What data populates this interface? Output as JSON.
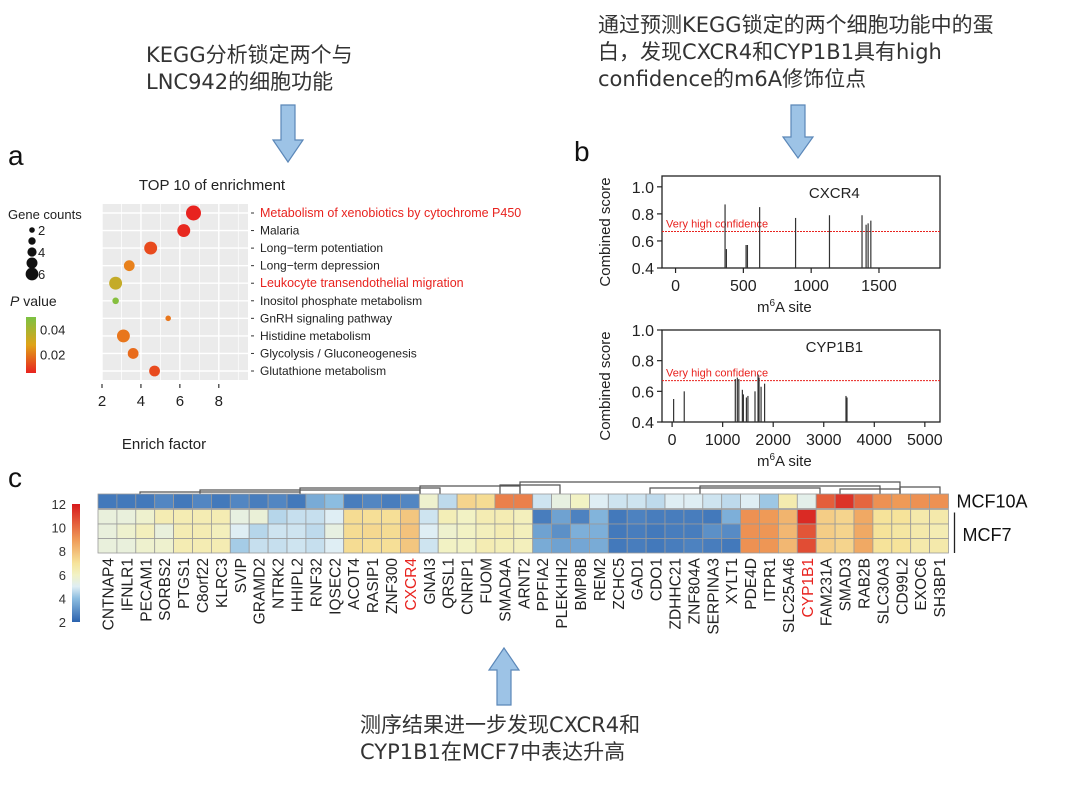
{
  "annotations": {
    "top_left": "KEGG分析锁定两个与\nLNC942的细胞功能",
    "top_right": "通过预测KEGG锁定的两个细胞功能中的蛋\n白，发现CXCR4和CYP1B1具有high\nconfidence的m6A修饰位点",
    "bottom": "测序结果进一步发现CXCR4和\nCYP1B1在MCF7中表达升高",
    "arrow_color": "#9dc3e6",
    "arrow_stroke": "#5b87b8"
  },
  "panels": {
    "a": "a",
    "b": "b",
    "c": "c"
  },
  "chart_data": [
    {
      "id": "a",
      "type": "scatter",
      "title": "TOP 10 of enrichment",
      "xlabel": "Enrich factor",
      "ylabel": "",
      "xlim": [
        2,
        9.5
      ],
      "xticks": [
        "2",
        "4",
        "6",
        "8"
      ],
      "xtick_values": [
        2,
        4,
        6,
        8
      ],
      "grid": true,
      "legend_size_title": "Gene counts",
      "legend_size_items": [
        {
          "label": "2",
          "value": 2
        },
        {
          "label": "",
          "value": 3
        },
        {
          "label": "4",
          "value": 4
        },
        {
          "label": "",
          "value": 5
        },
        {
          "label": "6",
          "value": 6
        }
      ],
      "legend_color_title_italic": "P",
      "legend_color_title": " value",
      "legend_color_ticks": [
        "0.04",
        "0.02"
      ],
      "legend_color_tick_values": [
        0.04,
        0.02
      ],
      "color_range": [
        0.005,
        0.05
      ],
      "colors": {
        "low": "#e8231f",
        "mid": "#e8a01a",
        "high": "#7cc243"
      },
      "terms": [
        {
          "label": "Metabolism of xenobiotics by cytochrome P450",
          "enrich": 6.7,
          "count": 6,
          "p": 0.005,
          "highlight": true
        },
        {
          "label": "Malaria",
          "enrich": 6.2,
          "count": 5,
          "p": 0.006,
          "highlight": false
        },
        {
          "label": "Long−term potentiation",
          "enrich": 4.5,
          "count": 5,
          "p": 0.012,
          "highlight": false
        },
        {
          "label": "Long−term depression",
          "enrich": 3.4,
          "count": 4,
          "p": 0.022,
          "highlight": false
        },
        {
          "label": "Leukocyte transendothelial migration",
          "enrich": 2.7,
          "count": 5,
          "p": 0.035,
          "highlight": true
        },
        {
          "label": "Inositol phosphate metabolism",
          "enrich": 2.7,
          "count": 2,
          "p": 0.048,
          "highlight": false
        },
        {
          "label": "GnRH signaling pathway",
          "enrich": 5.4,
          "count": 1.5,
          "p": 0.02,
          "highlight": false
        },
        {
          "label": "Histidine metabolism",
          "enrich": 3.1,
          "count": 5,
          "p": 0.02,
          "highlight": false
        },
        {
          "label": "Glycolysis / Gluconeogenesis",
          "enrich": 3.6,
          "count": 4,
          "p": 0.018,
          "highlight": false
        },
        {
          "label": "Glutathione metabolism",
          "enrich": 4.7,
          "count": 4,
          "p": 0.012,
          "highlight": false
        }
      ],
      "highlight_color": "#e8231f"
    },
    {
      "id": "b1",
      "type": "bar",
      "title": "CXCR4",
      "xlabel_main": "m",
      "xlabel_sup": "6",
      "xlabel_rest": "A site",
      "ylabel": "Combined score",
      "xlim": [
        -100,
        1950
      ],
      "ylim": [
        0.4,
        1.08
      ],
      "xticks": [
        0,
        500,
        1000,
        1500
      ],
      "yticks": [
        0.4,
        0.6,
        0.8,
        1.0
      ],
      "ytick_labels": [
        "0.4",
        "0.6",
        "0.8",
        "1.0"
      ],
      "threshold": 0.67,
      "threshold_label": "Very high confidence",
      "threshold_color": "#e8231f",
      "sites": [
        {
          "x": 365,
          "y": 0.87
        },
        {
          "x": 375,
          "y": 0.54
        },
        {
          "x": 520,
          "y": 0.57
        },
        {
          "x": 530,
          "y": 0.57
        },
        {
          "x": 620,
          "y": 0.85
        },
        {
          "x": 885,
          "y": 0.77
        },
        {
          "x": 1135,
          "y": 0.79
        },
        {
          "x": 1375,
          "y": 0.79
        },
        {
          "x": 1405,
          "y": 0.72
        },
        {
          "x": 1420,
          "y": 0.73
        },
        {
          "x": 1440,
          "y": 0.75
        }
      ]
    },
    {
      "id": "b2",
      "type": "bar",
      "title": "CYP1B1",
      "xlabel_main": "m",
      "xlabel_sup": "6",
      "xlabel_rest": "A site",
      "ylabel": "Combined score",
      "xlim": [
        -200,
        5300
      ],
      "ylim": [
        0.4,
        1.0
      ],
      "xticks": [
        0,
        1000,
        2000,
        3000,
        4000,
        5000
      ],
      "yticks": [
        0.4,
        0.6,
        0.8,
        1.0
      ],
      "ytick_labels": [
        "0.4",
        "0.6",
        "0.8",
        "1.0"
      ],
      "threshold": 0.67,
      "threshold_label": "Very high confidence",
      "threshold_color": "#e8231f",
      "sites": [
        {
          "x": 30,
          "y": 0.55
        },
        {
          "x": 240,
          "y": 0.6
        },
        {
          "x": 1250,
          "y": 0.68
        },
        {
          "x": 1290,
          "y": 0.69
        },
        {
          "x": 1320,
          "y": 0.68
        },
        {
          "x": 1390,
          "y": 0.61
        },
        {
          "x": 1410,
          "y": 0.58
        },
        {
          "x": 1470,
          "y": 0.56
        },
        {
          "x": 1500,
          "y": 0.57
        },
        {
          "x": 1640,
          "y": 0.6
        },
        {
          "x": 1700,
          "y": 0.71
        },
        {
          "x": 1720,
          "y": 0.69
        },
        {
          "x": 1760,
          "y": 0.63
        },
        {
          "x": 1830,
          "y": 0.65
        },
        {
          "x": 3440,
          "y": 0.57
        },
        {
          "x": 3460,
          "y": 0.56
        }
      ]
    },
    {
      "id": "c",
      "type": "heatmap",
      "title": "",
      "colorbar_ticks": [
        "12",
        "10",
        "8",
        "6",
        "4",
        "2"
      ],
      "colorbar_values": [
        12,
        10,
        8,
        6,
        4,
        2
      ],
      "value_range": [
        2,
        12
      ],
      "row_groups": [
        {
          "label": "MCF10A",
          "rows": 1
        },
        {
          "label": "MCF7",
          "rows": 3
        }
      ],
      "highlight_color": "#e8231f",
      "genes": [
        {
          "name": "CNTNAP4",
          "values": [
            2.5,
            5.5,
            5.5,
            5.5
          ]
        },
        {
          "name": "IFNLR1",
          "values": [
            2.5,
            5.5,
            5.8,
            5.5
          ]
        },
        {
          "name": "PECAM1",
          "values": [
            2.5,
            5.8,
            6.2,
            5.8
          ]
        },
        {
          "name": "SORBS2",
          "values": [
            2.8,
            6.4,
            5.5,
            5.8
          ]
        },
        {
          "name": "PTGS1",
          "values": [
            2.5,
            6.4,
            6.4,
            6.4
          ]
        },
        {
          "name": "C8orf22",
          "values": [
            2.8,
            6.4,
            6.4,
            6.4
          ]
        },
        {
          "name": "KLRC3",
          "values": [
            2.5,
            6.4,
            6.2,
            6.4
          ]
        },
        {
          "name": "SVIP",
          "values": [
            2.8,
            5.4,
            5.0,
            4.3
          ]
        },
        {
          "name": "GRAMD2",
          "values": [
            2.6,
            5.6,
            4.5,
            4.7
          ]
        },
        {
          "name": "NTRK2",
          "values": [
            2.8,
            4.5,
            4.8,
            4.7
          ]
        },
        {
          "name": "HHIPL2",
          "values": [
            2.5,
            4.7,
            4.8,
            4.8
          ]
        },
        {
          "name": "RNF32",
          "values": [
            3.6,
            4.7,
            4.6,
            4.7
          ]
        },
        {
          "name": "IQSEC2",
          "values": [
            4.0,
            5.0,
            5.4,
            5.0
          ]
        },
        {
          "name": "ACOT4",
          "values": [
            2.6,
            7.2,
            7.2,
            7.2
          ]
        },
        {
          "name": "RASIP1",
          "values": [
            2.8,
            7.1,
            7.3,
            7.1
          ]
        },
        {
          "name": "ZNF300",
          "values": [
            2.6,
            7.1,
            7.2,
            7.1
          ]
        },
        {
          "name": "CXCR4",
          "values": [
            2.8,
            7.8,
            7.9,
            7.8
          ],
          "highlight": true
        },
        {
          "name": "GNAI3",
          "values": [
            5.8,
            4.8,
            5.0,
            4.8
          ]
        },
        {
          "name": "QRSL1",
          "values": [
            4.6,
            6.3,
            5.8,
            6.0
          ]
        },
        {
          "name": "CNRIP1",
          "values": [
            7.4,
            6.0,
            6.0,
            6.0
          ]
        },
        {
          "name": "FUOM",
          "values": [
            7.2,
            6.4,
            6.2,
            6.4
          ]
        },
        {
          "name": "SMAD4A",
          "values": [
            9.6,
            6.4,
            6.4,
            6.3
          ]
        },
        {
          "name": "ARNT2",
          "values": [
            9.6,
            6.2,
            6.2,
            6.2
          ]
        },
        {
          "name": "PPFIA2",
          "values": [
            4.8,
            2.6,
            3.4,
            3.6
          ]
        },
        {
          "name": "PLEKHH2",
          "values": [
            5.4,
            3.4,
            3.0,
            3.4
          ]
        },
        {
          "name": "BMP8B",
          "values": [
            6.0,
            2.7,
            3.7,
            3.5
          ]
        },
        {
          "name": "REM2",
          "values": [
            5.0,
            3.8,
            3.7,
            3.6
          ]
        },
        {
          "name": "ZCHC5",
          "values": [
            4.8,
            2.5,
            2.5,
            2.5
          ]
        },
        {
          "name": "GAD1",
          "values": [
            4.8,
            2.7,
            2.6,
            2.6
          ]
        },
        {
          "name": "CDO1",
          "values": [
            4.6,
            2.6,
            2.5,
            2.5
          ]
        },
        {
          "name": "ZDHHC21",
          "values": [
            5.0,
            2.6,
            2.6,
            2.6
          ]
        },
        {
          "name": "ZNF804A",
          "values": [
            5.0,
            2.6,
            2.6,
            2.7
          ]
        },
        {
          "name": "SERPINA3",
          "values": [
            4.8,
            2.5,
            3.0,
            2.6
          ]
        },
        {
          "name": "XYLT1",
          "values": [
            4.6,
            3.7,
            2.9,
            2.5
          ]
        },
        {
          "name": "PDE4D",
          "values": [
            5.0,
            9.2,
            9.2,
            9.2
          ]
        },
        {
          "name": "ITPR1",
          "values": [
            4.2,
            9.0,
            9.1,
            9.1
          ]
        },
        {
          "name": "SLC25A46",
          "values": [
            6.5,
            8.3,
            8.2,
            8.2
          ]
        },
        {
          "name": "CYP1B1",
          "values": [
            5.2,
            11.6,
            10.6,
            10.8
          ],
          "highlight": true
        },
        {
          "name": "FAM231A",
          "values": [
            10.4,
            7.6,
            7.6,
            7.6
          ]
        },
        {
          "name": "SMAD3",
          "values": [
            11.4,
            7.4,
            7.4,
            7.4
          ]
        },
        {
          "name": "RAB2B",
          "values": [
            10.2,
            8.6,
            8.6,
            8.6
          ]
        },
        {
          "name": "SLC30A3",
          "values": [
            9.2,
            7.0,
            7.0,
            7.0
          ]
        },
        {
          "name": "CD99L2",
          "values": [
            9.0,
            7.0,
            6.8,
            7.0
          ]
        },
        {
          "name": "EXOC6",
          "values": [
            9.2,
            6.6,
            6.6,
            6.6
          ]
        },
        {
          "name": "SH3BP1",
          "values": [
            9.2,
            6.6,
            6.4,
            6.6
          ]
        }
      ]
    }
  ]
}
